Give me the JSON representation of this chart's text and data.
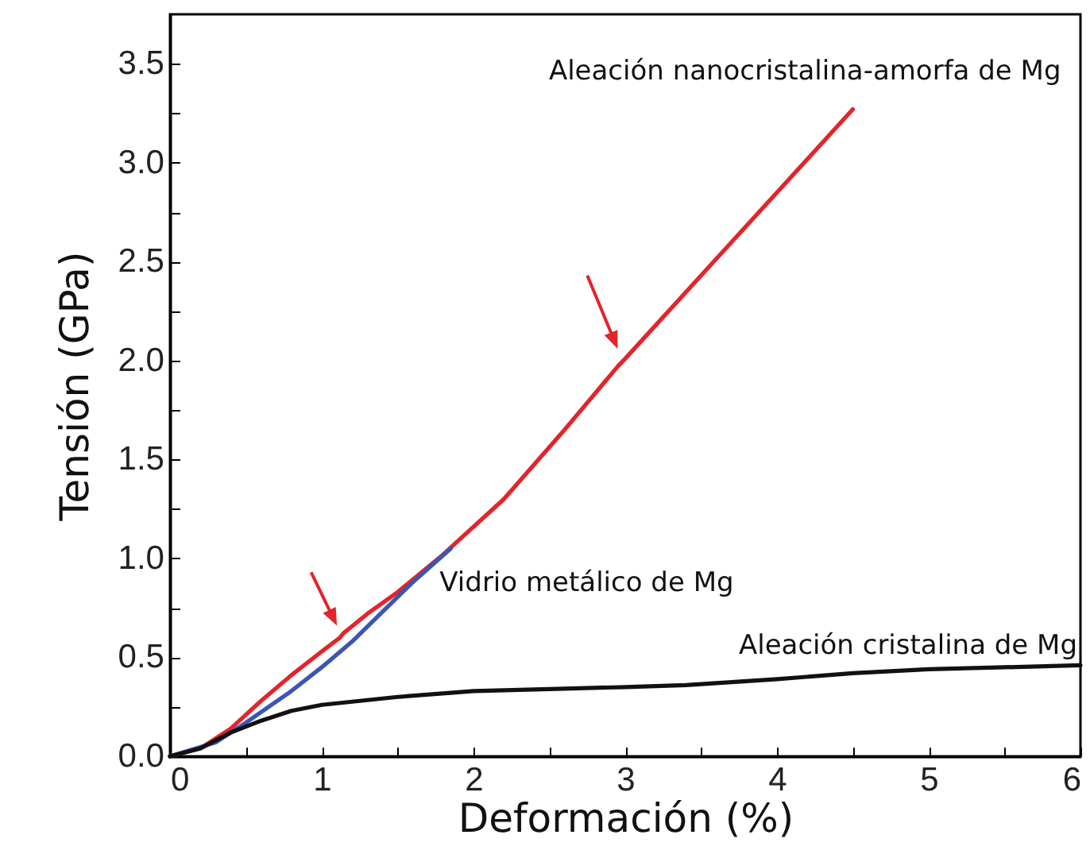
{
  "chart_data": {
    "type": "line",
    "xlabel": "Deformación (%)",
    "ylabel": "Tensión (GPa)",
    "xlim": [
      0,
      6
    ],
    "ylim": [
      0,
      3.75
    ],
    "xticks": [
      0,
      {
        "value": 0.5,
        "label": null
      },
      1,
      {
        "value": 1.5,
        "label": null
      },
      2,
      {
        "value": 2.5,
        "label": null
      },
      3,
      {
        "value": 3.5,
        "label": null
      },
      4,
      {
        "value": 4.5,
        "label": null
      },
      5,
      {
        "value": 5.5,
        "label": null
      },
      6
    ],
    "yticks": [
      {
        "value": 0,
        "label": "0.0"
      },
      {
        "value": 0.25,
        "label": null
      },
      {
        "value": 0.5,
        "label": "0.5"
      },
      {
        "value": 0.75,
        "label": null
      },
      {
        "value": 1,
        "label": "1.0"
      },
      {
        "value": 1.25,
        "label": null
      },
      {
        "value": 1.5,
        "label": "1.5"
      },
      {
        "value": 1.75,
        "label": null
      },
      {
        "value": 2,
        "label": "2.0"
      },
      {
        "value": 2.25,
        "label": null
      },
      {
        "value": 2.5,
        "label": "2.5"
      },
      {
        "value": 2.75,
        "label": null
      },
      {
        "value": 3,
        "label": "3.0"
      },
      {
        "value": 3.25,
        "label": null
      },
      {
        "value": 3.5,
        "label": "3.5"
      }
    ],
    "grid": false,
    "marker": "none",
    "line_style": "solid",
    "series": [
      {
        "name": "Aleación nanocristalina-amorfa de Mg",
        "color": "#e3242b",
        "x": [
          0,
          0.2,
          0.4,
          0.6,
          0.8,
          1.0,
          1.12,
          1.14,
          1.3,
          1.5,
          1.8,
          2.2,
          2.6,
          2.95,
          3.0,
          3.5,
          4.0,
          4.5
        ],
        "values": [
          0,
          0.04,
          0.14,
          0.28,
          0.41,
          0.53,
          0.6,
          0.62,
          0.72,
          0.83,
          1.02,
          1.3,
          1.65,
          1.97,
          2.01,
          2.43,
          2.85,
          3.27
        ]
      },
      {
        "name": "Vidrio metálico de Mg",
        "color": "#3a55b4",
        "x": [
          0,
          0.3,
          0.5,
          0.8,
          1.0,
          1.2,
          1.4,
          1.6,
          1.85
        ],
        "values": [
          0,
          0.07,
          0.17,
          0.33,
          0.45,
          0.58,
          0.73,
          0.88,
          1.05
        ]
      },
      {
        "name": "Aleación cristalina de Mg",
        "color": "#111111",
        "x": [
          0,
          0.2,
          0.4,
          0.6,
          0.8,
          1.0,
          1.5,
          2.0,
          2.5,
          3.0,
          3.4,
          4.0,
          4.5,
          5.0,
          5.5,
          6.0
        ],
        "values": [
          0,
          0.04,
          0.12,
          0.18,
          0.23,
          0.26,
          0.3,
          0.33,
          0.34,
          0.35,
          0.36,
          0.39,
          0.42,
          0.44,
          0.45,
          0.46
        ]
      }
    ]
  }
}
